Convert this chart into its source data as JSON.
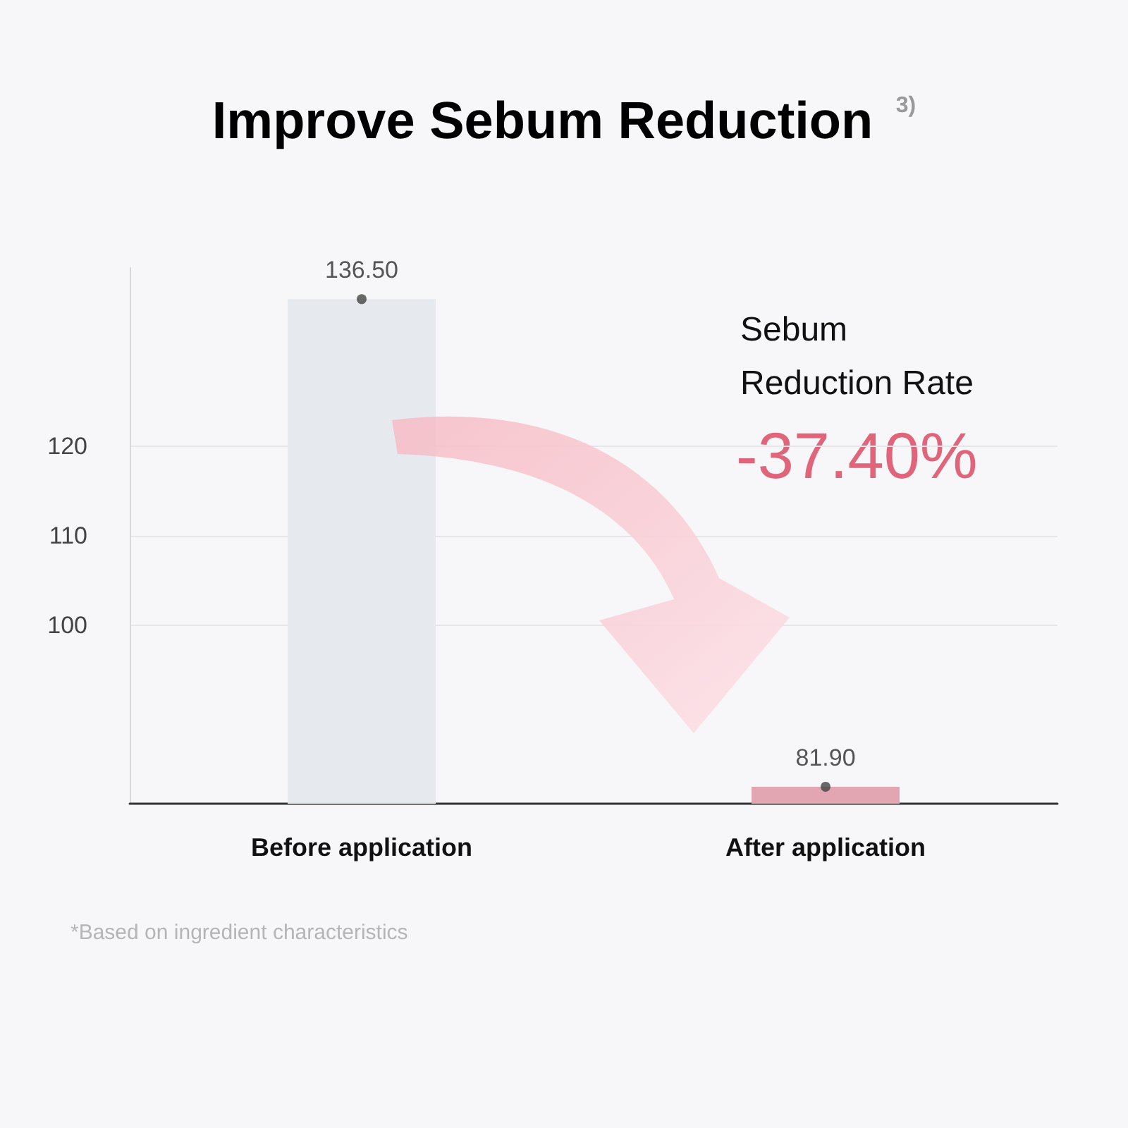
{
  "chart_data": {
    "type": "bar",
    "title": "Improve Sebum Reduction $^{3)}$",
    "categories": [
      "Before application",
      "After application"
    ],
    "series": [
      {
        "type": "bar",
        "values": [
          136.5,
          81.9
        ],
        "colors": [
          "#e6e9ee",
          "#e2a5b2"
        ],
        "value_labels": [
          "136.50",
          "81.90"
        ]
      },
      {
        "type": "scatter",
        "x": [
          "Before application",
          "After application"
        ],
        "values": [
          136.5,
          81.9
        ],
        "color": "#444444"
      }
    ],
    "ylim": [
      80,
      140
    ],
    "yticks": [
      100,
      110,
      120
    ],
    "grid": "y",
    "marker": "circle",
    "annotations": [
      "Sebum Reduction Rate",
      "-37.40%",
      "*Based on ingredient characteristics"
    ]
  }
}
